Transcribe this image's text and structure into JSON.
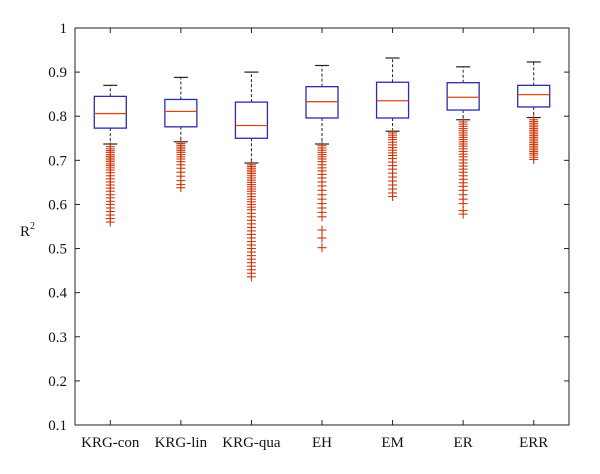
{
  "chart_data": {
    "type": "box",
    "ylabel": "R",
    "ylabel_superscript": "2",
    "ylim": [
      0.1,
      1.0
    ],
    "yticks": [
      "0.1",
      "0.2",
      "0.3",
      "0.4",
      "0.5",
      "0.6",
      "0.7",
      "0.8",
      "0.9",
      "1"
    ],
    "ytick_values": [
      0.1,
      0.2,
      0.3,
      0.4,
      0.5,
      0.6,
      0.7,
      0.8,
      0.9,
      1.0
    ],
    "categories": [
      "KRG-con",
      "KRG-lin",
      "KRG-qua",
      "EH",
      "EM",
      "ER",
      "ERR"
    ],
    "boxes": [
      {
        "whisker_low": 0.737,
        "q1": 0.773,
        "median": 0.806,
        "q3": 0.845,
        "whisker_high": 0.87,
        "outliers": [
          0.731,
          0.726,
          0.722,
          0.718,
          0.713,
          0.709,
          0.705,
          0.701,
          0.697,
          0.692,
          0.688,
          0.683,
          0.678,
          0.672,
          0.665,
          0.658,
          0.651,
          0.644,
          0.637,
          0.63,
          0.622,
          0.615,
          0.607,
          0.6,
          0.592,
          0.584,
          0.576,
          0.568,
          0.56
        ]
      },
      {
        "whisker_low": 0.742,
        "q1": 0.776,
        "median": 0.811,
        "q3": 0.838,
        "whisker_high": 0.888,
        "outliers": [
          0.738,
          0.734,
          0.73,
          0.726,
          0.722,
          0.718,
          0.713,
          0.708,
          0.703,
          0.697,
          0.69,
          0.682,
          0.673,
          0.664,
          0.654,
          0.645,
          0.638
        ]
      },
      {
        "whisker_low": 0.694,
        "q1": 0.75,
        "median": 0.779,
        "q3": 0.832,
        "whisker_high": 0.9,
        "outliers": [
          0.69,
          0.686,
          0.682,
          0.678,
          0.674,
          0.67,
          0.665,
          0.66,
          0.655,
          0.65,
          0.645,
          0.64,
          0.635,
          0.63,
          0.624,
          0.618,
          0.612,
          0.606,
          0.6,
          0.594,
          0.588,
          0.58,
          0.572,
          0.564,
          0.556,
          0.548,
          0.54,
          0.532,
          0.524,
          0.516,
          0.508,
          0.5,
          0.492,
          0.484,
          0.476,
          0.468,
          0.46,
          0.452,
          0.444,
          0.436
        ]
      },
      {
        "whisker_low": 0.737,
        "q1": 0.796,
        "median": 0.833,
        "q3": 0.867,
        "whisker_high": 0.915,
        "outliers": [
          0.733,
          0.728,
          0.723,
          0.718,
          0.713,
          0.708,
          0.703,
          0.697,
          0.69,
          0.683,
          0.676,
          0.668,
          0.66,
          0.651,
          0.642,
          0.632,
          0.622,
          0.612,
          0.602,
          0.592,
          0.582,
          0.572,
          0.542,
          0.524,
          0.502
        ]
      },
      {
        "whisker_low": 0.766,
        "q1": 0.796,
        "median": 0.835,
        "q3": 0.877,
        "whisker_high": 0.932,
        "outliers": [
          0.762,
          0.757,
          0.752,
          0.747,
          0.741,
          0.735,
          0.729,
          0.723,
          0.717,
          0.711,
          0.704,
          0.696,
          0.688,
          0.68,
          0.671,
          0.662,
          0.653,
          0.644,
          0.635,
          0.626,
          0.618
        ]
      },
      {
        "whisker_low": 0.792,
        "q1": 0.814,
        "median": 0.843,
        "q3": 0.876,
        "whisker_high": 0.912,
        "outliers": [
          0.787,
          0.782,
          0.777,
          0.772,
          0.767,
          0.762,
          0.757,
          0.752,
          0.747,
          0.742,
          0.737,
          0.732,
          0.726,
          0.72,
          0.714,
          0.708,
          0.701,
          0.694,
          0.687,
          0.68,
          0.673,
          0.665,
          0.657,
          0.649,
          0.641,
          0.632,
          0.622,
          0.612,
          0.602,
          0.586,
          0.578
        ]
      },
      {
        "whisker_low": 0.797,
        "q1": 0.821,
        "median": 0.849,
        "q3": 0.87,
        "whisker_high": 0.923,
        "outliers": [
          0.792,
          0.788,
          0.784,
          0.78,
          0.776,
          0.772,
          0.768,
          0.764,
          0.76,
          0.756,
          0.752,
          0.748,
          0.744,
          0.74,
          0.736,
          0.732,
          0.728,
          0.724,
          0.72,
          0.716,
          0.712,
          0.707,
          0.702
        ]
      }
    ],
    "colors": {
      "box": "#2b2bb0",
      "median": "#d84a1b",
      "whisker": "#222222",
      "outlier": "#cc3a10",
      "axis": "#222222"
    }
  }
}
